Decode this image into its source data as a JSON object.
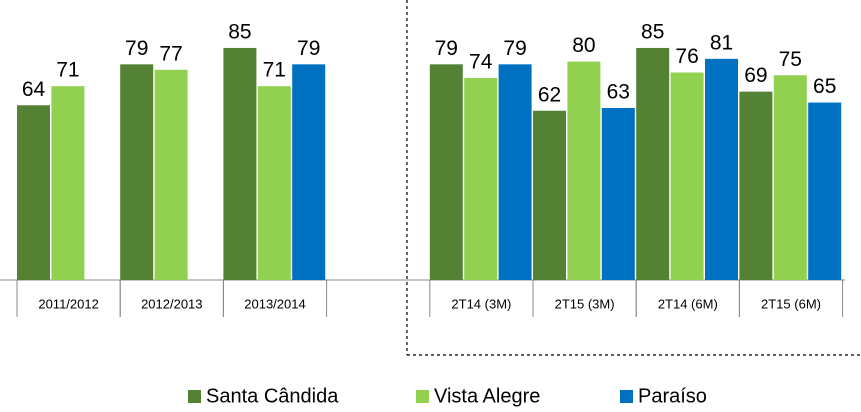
{
  "chart_data": {
    "type": "bar",
    "categories": [
      "2011/2012",
      "2012/2013",
      "2013/2014",
      null,
      "2T14 (3M)",
      "2T15 (3M)",
      "2T14 (6M)",
      "2T15 (6M)"
    ],
    "series": [
      {
        "name": "Santa Cândida",
        "color": "#548235",
        "values": [
          64,
          79,
          85,
          null,
          79,
          62,
          85,
          69
        ]
      },
      {
        "name": "Vista Alegre",
        "color": "#92d050",
        "values": [
          71,
          77,
          71,
          null,
          74,
          80,
          76,
          75
        ]
      },
      {
        "name": "Paraíso",
        "color": "#0070c0",
        "values": [
          null,
          null,
          79,
          null,
          79,
          63,
          81,
          65
        ]
      }
    ],
    "ylim": [
      0,
      100
    ],
    "legend": "bottom"
  }
}
